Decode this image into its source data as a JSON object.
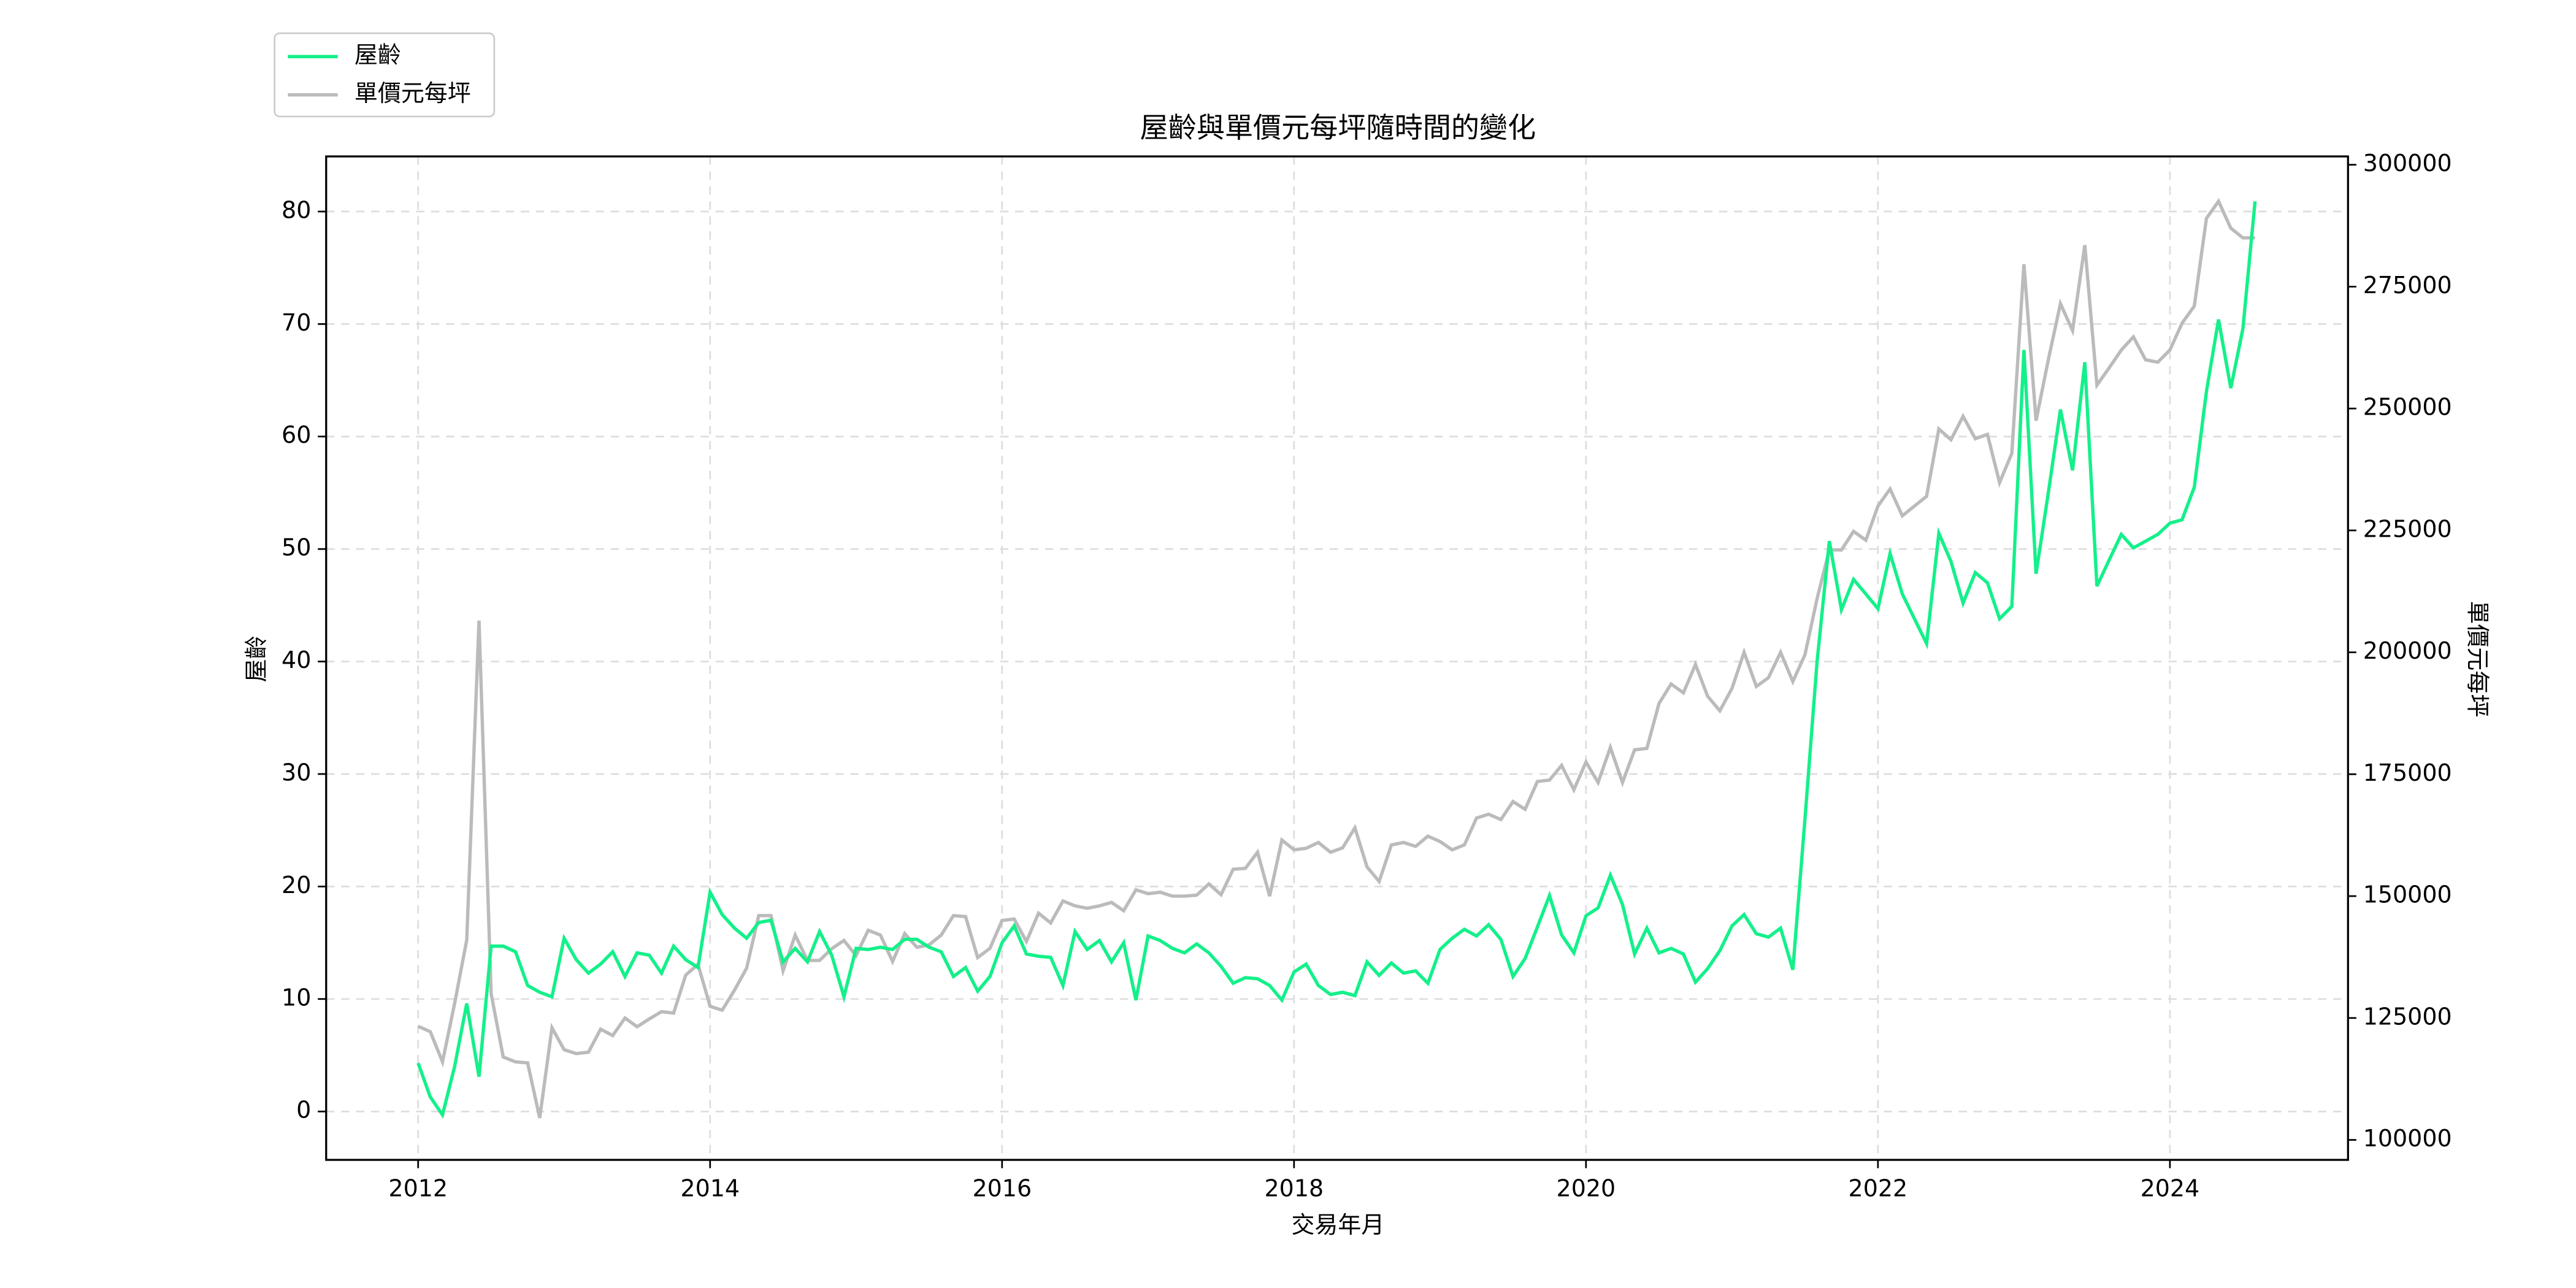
{
  "chart_data": {
    "type": "line",
    "title": "屋齡與單價元每坪隨時間的變化",
    "xlabel": "交易年月",
    "ylabel": "屋齡",
    "y2label": "單價元每坪",
    "legend": "upper left",
    "grid": true,
    "xlim": [
      2011.37,
      2025.22
    ],
    "xticks": [
      2012,
      2014,
      2016,
      2018,
      2020,
      2022,
      2024
    ],
    "ylim": [
      -4.3,
      84.9
    ],
    "yticks": [
      0,
      10,
      20,
      30,
      40,
      50,
      60,
      70,
      80
    ],
    "y2lim": [
      95904,
      301706
    ],
    "y2ticks": [
      100000,
      125000,
      150000,
      175000,
      200000,
      225000,
      250000,
      275000,
      300000
    ],
    "x": [
      2012,
      2012.083,
      2012.167,
      2012.25,
      2012.333,
      2012.417,
      2012.5,
      2012.583,
      2012.667,
      2012.75,
      2012.833,
      2012.917,
      2013,
      2013.083,
      2013.167,
      2013.25,
      2013.333,
      2013.417,
      2013.5,
      2013.583,
      2013.667,
      2013.75,
      2013.833,
      2013.917,
      2014,
      2014.083,
      2014.167,
      2014.25,
      2014.333,
      2014.417,
      2014.5,
      2014.583,
      2014.667,
      2014.75,
      2014.833,
      2014.917,
      2015,
      2015.083,
      2015.167,
      2015.25,
      2015.333,
      2015.417,
      2015.5,
      2015.583,
      2015.667,
      2015.75,
      2015.833,
      2015.917,
      2016,
      2016.083,
      2016.167,
      2016.25,
      2016.333,
      2016.417,
      2016.5,
      2016.583,
      2016.667,
      2016.75,
      2016.833,
      2016.917,
      2017,
      2017.083,
      2017.167,
      2017.25,
      2017.333,
      2017.417,
      2017.5,
      2017.583,
      2017.667,
      2017.75,
      2017.833,
      2017.917,
      2018,
      2018.083,
      2018.167,
      2018.25,
      2018.333,
      2018.417,
      2018.5,
      2018.583,
      2018.667,
      2018.75,
      2018.833,
      2018.917,
      2019,
      2019.083,
      2019.167,
      2019.25,
      2019.333,
      2019.417,
      2019.5,
      2019.583,
      2019.667,
      2019.75,
      2019.833,
      2019.917,
      2020,
      2020.083,
      2020.167,
      2020.25,
      2020.333,
      2020.417,
      2020.5,
      2020.583,
      2020.667,
      2020.75,
      2020.833,
      2020.917,
      2021,
      2021.083,
      2021.167,
      2021.25,
      2021.333,
      2021.417,
      2021.5,
      2021.583,
      2021.667,
      2021.75,
      2021.833,
      2021.917,
      2022,
      2022.083,
      2022.167,
      2022.25,
      2022.333,
      2022.417,
      2022.5,
      2022.583,
      2022.667,
      2022.75,
      2022.833,
      2022.917,
      2023,
      2023.083,
      2023.167,
      2023.25,
      2023.333,
      2023.417,
      2023.5,
      2023.583,
      2023.667,
      2023.75,
      2023.833,
      2023.917,
      2024,
      2024.083,
      2024.167,
      2024.25,
      2024.333,
      2024.417,
      2024.5,
      2024.583
    ],
    "series": [
      {
        "name": "屋齡",
        "color": "#14f08a",
        "axis": "y",
        "values": [
          4.3,
          1.3,
          -0.3,
          4,
          9.6,
          3.1,
          14.7,
          14.7,
          14.2,
          11.2,
          10.6,
          10.2,
          15.4,
          13.5,
          12.3,
          13.1,
          14.2,
          12.0,
          14.1,
          13.9,
          12.3,
          14.7,
          13.5,
          12.8,
          19.5,
          17.5,
          16.3,
          15.4,
          16.8,
          17,
          13.3,
          14.5,
          13.3,
          16,
          13.9,
          10.2,
          14.5,
          14.4,
          14.6,
          14.4,
          15.3,
          15.3,
          14.6,
          14.2,
          12,
          12.8,
          10.7,
          12,
          15,
          16.5,
          14,
          13.8,
          13.7,
          11.2,
          16,
          14.4,
          15.2,
          13.3,
          15,
          9.9,
          15.6,
          15.2,
          14.5,
          14.1,
          14.9,
          14.1,
          12.9,
          11.4,
          11.9,
          11.8,
          11.2,
          9.9,
          12.4,
          13.1,
          11.2,
          10.4,
          10.6,
          10.3,
          13.3,
          12.1,
          13.2,
          12.3,
          12.5,
          11.4,
          14.4,
          15.4,
          16.2,
          15.6,
          16.6,
          15.3,
          12.0,
          13.6,
          16.4,
          19.2,
          15.7,
          14.1,
          17.4,
          18.1,
          21,
          18.4,
          14,
          16.3,
          14.1,
          14.5,
          14,
          11.5,
          12.7,
          14.3,
          16.5,
          17.5,
          15.8,
          15.5,
          16.3,
          12.6,
          26,
          40,
          50.7,
          44.6,
          47.3,
          46,
          44.7,
          49.6,
          46,
          43.8,
          41.6,
          51.4,
          48.9,
          45.2,
          47.9,
          47,
          43.8,
          44.9,
          67.7,
          47.8,
          55,
          62.4,
          57,
          66.6,
          46.7,
          49,
          51.3,
          50.1,
          50.7,
          51.3,
          52.3,
          52.6,
          55.5,
          64,
          70.4,
          64.3,
          69.6,
          80.9
        ]
      },
      {
        "name": "單價元每坪",
        "color": "#bbbbbb",
        "axis": "y2",
        "values": [
          123300,
          122200,
          116000,
          128000,
          141000,
          206500,
          130000,
          117000,
          116000,
          115800,
          104500,
          123000,
          118500,
          117700,
          118000,
          122700,
          121400,
          125000,
          123200,
          124800,
          126300,
          126000,
          133800,
          136000,
          127400,
          126600,
          130700,
          135200,
          146000,
          146000,
          134700,
          142000,
          136800,
          136800,
          139200,
          140900,
          137800,
          143000,
          142000,
          136600,
          142300,
          139500,
          140000,
          142000,
          146000,
          145800,
          137400,
          139300,
          145000,
          145300,
          140700,
          146500,
          144500,
          149000,
          148000,
          147500,
          148000,
          148700,
          147000,
          151300,
          150500,
          150800,
          150000,
          150000,
          150200,
          152500,
          150300,
          155500,
          155700,
          159000,
          150000,
          161500,
          159500,
          159800,
          161000,
          159000,
          159900,
          164000,
          156000,
          153000,
          160500,
          161000,
          160200,
          162300,
          161200,
          159500,
          160500,
          166000,
          166800,
          165700,
          169400,
          167800,
          173500,
          173800,
          176800,
          171800,
          177500,
          173300,
          180500,
          173300,
          180000,
          180300,
          189500,
          193500,
          191700,
          197500,
          191000,
          188000,
          192600,
          200000,
          193000,
          194800,
          200000,
          194000,
          199500,
          211000,
          221000,
          221000,
          224800,
          223000,
          230000,
          233500,
          228000,
          230000,
          232000,
          245800,
          243600,
          248400,
          243800,
          244700,
          234800,
          240800,
          279600,
          247500,
          260000,
          271500,
          266000,
          283500,
          254800,
          258300,
          262000,
          264700,
          260000,
          259500,
          262000,
          267500,
          271000,
          289000,
          292500,
          287000,
          285000,
          285000
        ]
      }
    ]
  }
}
